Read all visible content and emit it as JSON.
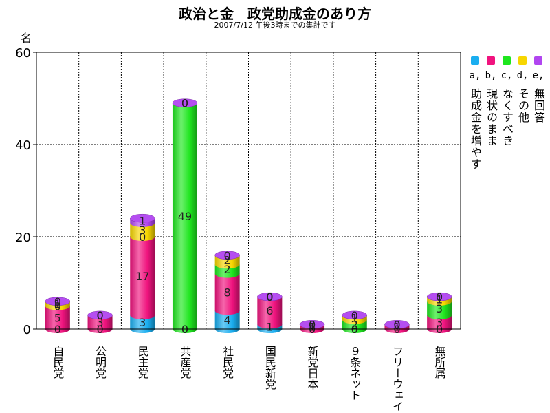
{
  "title": "政治と金　政党助成金のあり方",
  "subtitle": "2007/7/12 午後3時までの集計です",
  "y_unit": "名",
  "legend": [
    {
      "key": "a",
      "mark": "a,",
      "label": "助成金を増やす",
      "color": "#1aaef0",
      "icon": "cyan-cylinder-icon"
    },
    {
      "key": "b",
      "mark": "b,",
      "label": "現状のまま",
      "color": "#f0137e",
      "icon": "magenta-cylinder-icon"
    },
    {
      "key": "c",
      "mark": "c,",
      "label": "なくすべき",
      "color": "#1ee61e",
      "icon": "green-cylinder-icon"
    },
    {
      "key": "d",
      "mark": "d,",
      "label": "その他",
      "color": "#f7d600",
      "icon": "yellow-cylinder-icon"
    },
    {
      "key": "e",
      "mark": "e,",
      "label": "無回答",
      "color": "#b145f0",
      "icon": "purple-cylinder-icon"
    }
  ],
  "chart_data": {
    "type": "bar",
    "stacked": true,
    "title": "政治と金　政党助成金のあり方",
    "subtitle": "2007/7/12 午後3時までの集計です",
    "ylabel": "名",
    "ylim": [
      0,
      60
    ],
    "yticks": [
      0,
      20,
      40,
      60
    ],
    "grid": true,
    "legend_position": "right",
    "categories": [
      "自民党",
      "公明党",
      "民主党",
      "共産党",
      "社民党",
      "国民新党",
      "新党日本",
      "９条ネット",
      "フリーウェイ",
      "無所属"
    ],
    "series": [
      {
        "name": "助成金を増やす",
        "key": "a",
        "values": [
          0,
          0,
          3,
          0,
          4,
          1,
          0,
          0,
          0,
          0
        ]
      },
      {
        "name": "現状のまま",
        "key": "b",
        "values": [
          5,
          3,
          17,
          0,
          8,
          6,
          1,
          0,
          1,
          3
        ]
      },
      {
        "name": "なくすべき",
        "key": "c",
        "values": [
          0,
          0,
          0,
          49,
          2,
          0,
          0,
          2,
          0,
          3
        ]
      },
      {
        "name": "その他",
        "key": "d",
        "values": [
          1,
          0,
          3,
          0,
          2,
          0,
          0,
          1,
          0,
          1
        ]
      },
      {
        "name": "無回答",
        "key": "e",
        "values": [
          0,
          0,
          1,
          0,
          0,
          0,
          0,
          0,
          0,
          0
        ]
      }
    ]
  }
}
